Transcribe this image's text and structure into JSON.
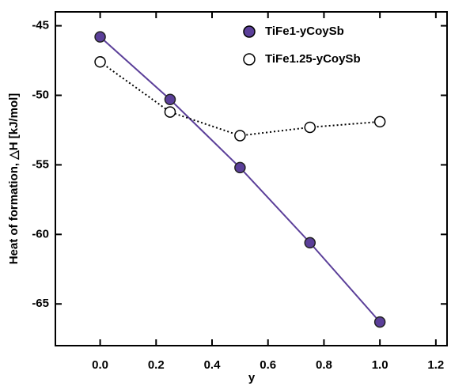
{
  "chart_data": {
    "type": "line",
    "x_label": "y",
    "y_label": "Heat of formation, △H [kJ/mol]",
    "x": [
      0.0,
      0.25,
      0.5,
      0.75,
      1.0
    ],
    "series": [
      {
        "name": "TiFe1-yCoySb",
        "color": "#5b3f99",
        "marker": "filled",
        "line_style": "solid",
        "values": [
          -45.8,
          -50.3,
          -55.2,
          -60.6,
          -66.3
        ]
      },
      {
        "name": "TiFe1.25-yCoySb",
        "color": "#000000",
        "marker": "open",
        "line_style": "dotted",
        "values": [
          -47.6,
          -51.2,
          -52.9,
          -52.3,
          -51.9
        ]
      }
    ],
    "xlim": [
      -0.16,
      1.24
    ],
    "ylim": [
      -68,
      -44
    ],
    "xticks": [
      {
        "value": 0,
        "label": "0.0"
      },
      0.2,
      0.4,
      0.6,
      0.8,
      {
        "value": 1,
        "label": "1.0"
      },
      1.2
    ],
    "yticks": [
      -65,
      -60,
      -55,
      -50,
      -45
    ],
    "legend": "upper right"
  }
}
